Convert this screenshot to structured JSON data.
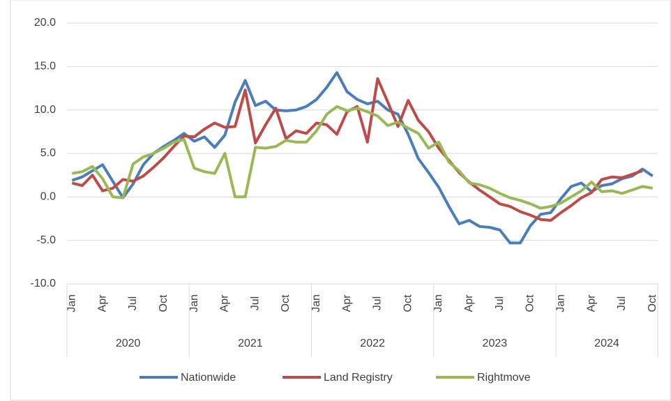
{
  "chart_data": {
    "type": "line",
    "categories": [
      "Jan",
      null,
      null,
      "Apr",
      null,
      null,
      "Jul",
      null,
      null,
      "Oct",
      null,
      null,
      "Jan",
      null,
      null,
      "Apr",
      null,
      null,
      "Jul",
      null,
      null,
      "Oct",
      null,
      null,
      "Jan",
      null,
      null,
      "Apr",
      null,
      null,
      "Jul",
      null,
      null,
      "Oct",
      null,
      null,
      "Jan",
      null,
      null,
      "Apr",
      null,
      null,
      "Jul",
      null,
      null,
      "Oct",
      null,
      null,
      "Jan",
      null,
      null,
      "Apr",
      null,
      null,
      "Jul",
      null,
      null,
      "Oct"
    ],
    "years": [
      "2020",
      "2021",
      "2022",
      "2023",
      "2024"
    ],
    "series": [
      {
        "name": "Nationwide",
        "color": "#4a7ebb",
        "values": [
          1.9,
          2.3,
          3.0,
          3.7,
          1.8,
          -0.1,
          1.5,
          3.7,
          5.0,
          5.8,
          6.5,
          7.3,
          6.4,
          6.9,
          5.7,
          7.1,
          10.9,
          13.4,
          10.5,
          11.0,
          10.0,
          9.9,
          10.0,
          10.4,
          11.2,
          12.6,
          14.3,
          12.1,
          11.2,
          10.7,
          11.0,
          10.0,
          9.5,
          7.2,
          4.4,
          2.8,
          1.1,
          -1.1,
          -3.1,
          -2.7,
          -3.4,
          -3.5,
          -3.8,
          -5.3,
          -5.3,
          -3.3,
          -2.0,
          -1.8,
          -0.2,
          1.2,
          1.6,
          0.6,
          1.3,
          1.5,
          2.1,
          2.4,
          3.2,
          2.4
        ]
      },
      {
        "name": "Land Registry",
        "color": "#be4b48",
        "values": [
          1.6,
          1.3,
          2.5,
          0.7,
          1.0,
          2.0,
          1.8,
          2.4,
          3.4,
          4.5,
          5.8,
          7.0,
          6.9,
          7.8,
          8.5,
          8.0,
          8.1,
          12.3,
          6.2,
          8.3,
          10.2,
          6.7,
          7.6,
          7.3,
          8.5,
          8.3,
          7.2,
          9.8,
          10.4,
          6.3,
          13.6,
          10.9,
          8.1,
          11.1,
          8.8,
          7.5,
          5.6,
          4.2,
          2.8,
          1.7,
          0.8,
          0.0,
          -0.8,
          -1.1,
          -1.7,
          -2.1,
          -2.6,
          -2.7,
          -1.8,
          -1.0,
          -0.1,
          0.5,
          2.0,
          2.3,
          2.2,
          2.6,
          3.0,
          null
        ]
      },
      {
        "name": "Rightmove",
        "color": "#98b954",
        "values": [
          2.7,
          2.9,
          3.5,
          2.1,
          0.0,
          -0.1,
          3.8,
          4.6,
          5.0,
          5.6,
          6.3,
          6.6,
          3.3,
          2.9,
          2.7,
          5.0,
          0.0,
          0.0,
          5.7,
          5.6,
          5.8,
          6.5,
          6.3,
          6.3,
          7.6,
          9.5,
          10.4,
          9.9,
          10.2,
          9.8,
          9.3,
          8.2,
          8.6,
          7.9,
          7.3,
          5.6,
          6.3,
          4.0,
          3.0,
          1.6,
          1.4,
          1.0,
          0.4,
          -0.1,
          -0.4,
          -0.8,
          -1.3,
          -1.1,
          -0.7,
          0.0,
          0.7,
          1.7,
          0.6,
          0.7,
          0.4,
          0.8,
          1.2,
          1.0
        ]
      }
    ],
    "ylim": [
      -10,
      20
    ],
    "yticks": [
      {
        "value": -10,
        "label": "-10.0"
      },
      {
        "value": -5,
        "label": "-5.0"
      },
      {
        "value": 0,
        "label": "0.0"
      },
      {
        "value": 5,
        "label": "5.0"
      },
      {
        "value": 10,
        "label": "10.0"
      },
      {
        "value": 15,
        "label": "15.0"
      },
      {
        "value": 20,
        "label": "20.0"
      }
    ],
    "grid": true,
    "legend": "bottom"
  }
}
